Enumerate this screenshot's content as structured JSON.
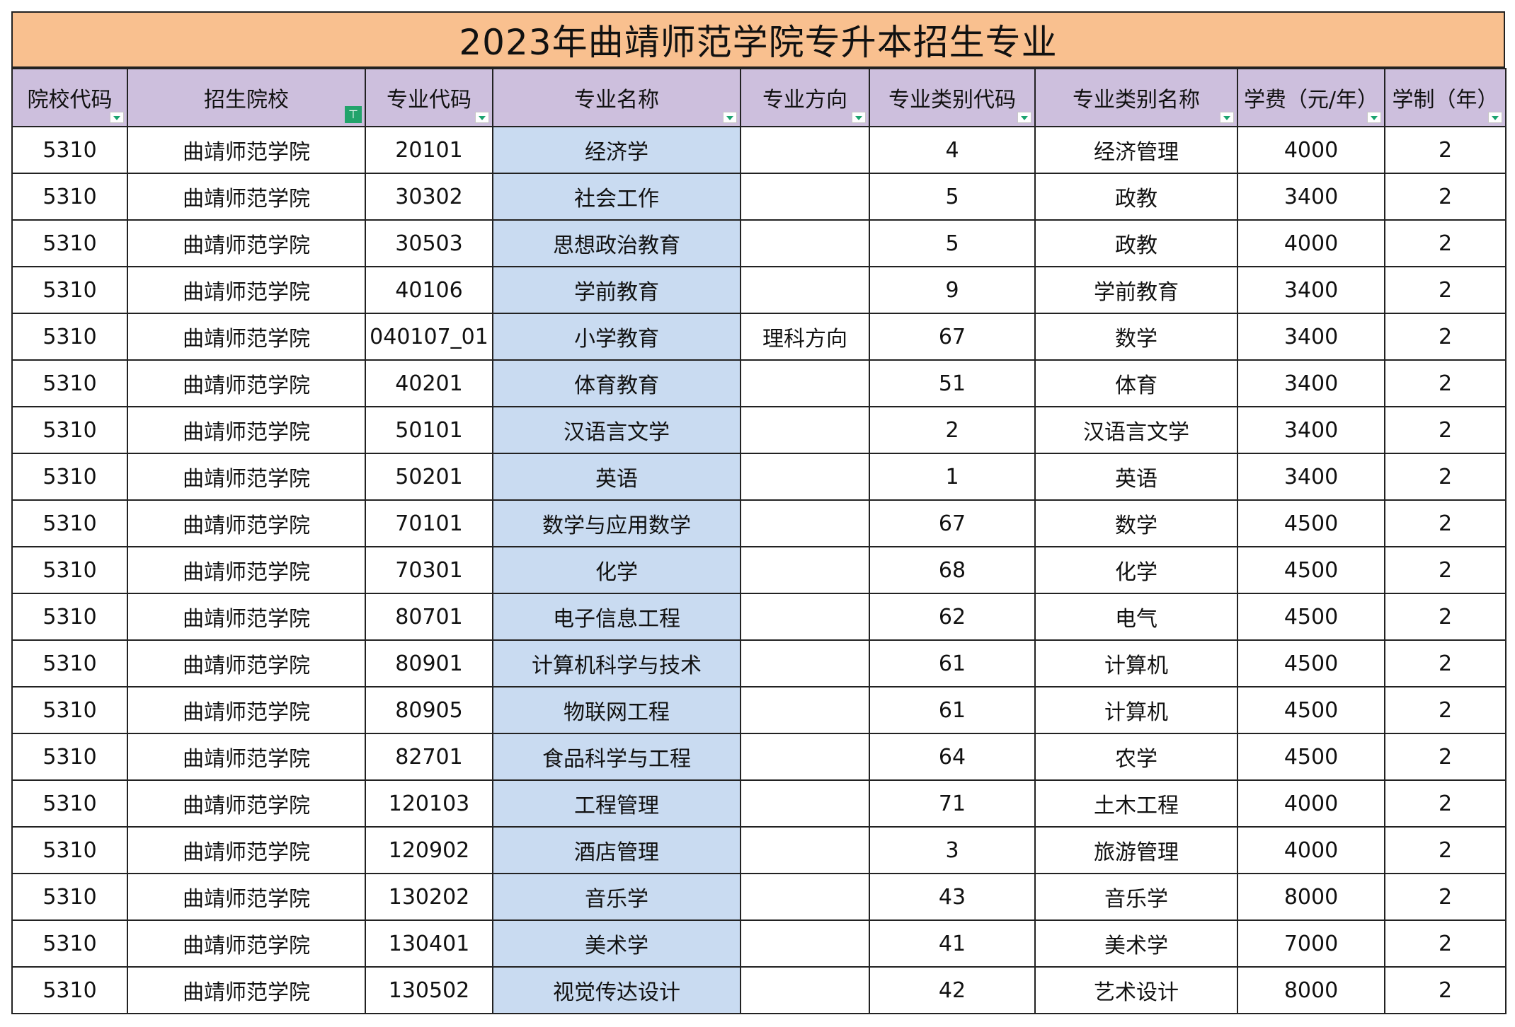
{
  "title": "2023年曲靖师范学院专升本招生专业",
  "filter_glyph": "⊤",
  "headers": [
    "院校代码",
    "招生院校",
    "专业代码",
    "专业名称",
    "专业方向",
    "专业类别代码",
    "专业类别名称",
    "学费（元/年）",
    "学制（年）"
  ],
  "rows": [
    [
      "5310",
      "曲靖师范学院",
      "20101",
      "经济学",
      "",
      "4",
      "经济管理",
      "4000",
      "2"
    ],
    [
      "5310",
      "曲靖师范学院",
      "30302",
      "社会工作",
      "",
      "5",
      "政教",
      "3400",
      "2"
    ],
    [
      "5310",
      "曲靖师范学院",
      "30503",
      "思想政治教育",
      "",
      "5",
      "政教",
      "4000",
      "2"
    ],
    [
      "5310",
      "曲靖师范学院",
      "40106",
      "学前教育",
      "",
      "9",
      "学前教育",
      "3400",
      "2"
    ],
    [
      "5310",
      "曲靖师范学院",
      "040107_01",
      "小学教育",
      "理科方向",
      "67",
      "数学",
      "3400",
      "2"
    ],
    [
      "5310",
      "曲靖师范学院",
      "40201",
      "体育教育",
      "",
      "51",
      "体育",
      "3400",
      "2"
    ],
    [
      "5310",
      "曲靖师范学院",
      "50101",
      "汉语言文学",
      "",
      "2",
      "汉语言文学",
      "3400",
      "2"
    ],
    [
      "5310",
      "曲靖师范学院",
      "50201",
      "英语",
      "",
      "1",
      "英语",
      "3400",
      "2"
    ],
    [
      "5310",
      "曲靖师范学院",
      "70101",
      "数学与应用数学",
      "",
      "67",
      "数学",
      "4500",
      "2"
    ],
    [
      "5310",
      "曲靖师范学院",
      "70301",
      "化学",
      "",
      "68",
      "化学",
      "4500",
      "2"
    ],
    [
      "5310",
      "曲靖师范学院",
      "80701",
      "电子信息工程",
      "",
      "62",
      "电气",
      "4500",
      "2"
    ],
    [
      "5310",
      "曲靖师范学院",
      "80901",
      "计算机科学与技术",
      "",
      "61",
      "计算机",
      "4500",
      "2"
    ],
    [
      "5310",
      "曲靖师范学院",
      "80905",
      "物联网工程",
      "",
      "61",
      "计算机",
      "4500",
      "2"
    ],
    [
      "5310",
      "曲靖师范学院",
      "82701",
      "食品科学与工程",
      "",
      "64",
      "农学",
      "4500",
      "2"
    ],
    [
      "5310",
      "曲靖师范学院",
      "120103",
      "工程管理",
      "",
      "71",
      "土木工程",
      "4000",
      "2"
    ],
    [
      "5310",
      "曲靖师范学院",
      "120902",
      "酒店管理",
      "",
      "3",
      "旅游管理",
      "4000",
      "2"
    ],
    [
      "5310",
      "曲靖师范学院",
      "130202",
      "音乐学",
      "",
      "43",
      "音乐学",
      "8000",
      "2"
    ],
    [
      "5310",
      "曲靖师范学院",
      "130401",
      "美术学",
      "",
      "41",
      "美术学",
      "7000",
      "2"
    ],
    [
      "5310",
      "曲靖师范学院",
      "130502",
      "视觉传达设计",
      "",
      "42",
      "艺术设计",
      "8000",
      "2"
    ]
  ],
  "colors": {
    "title_bg": "#f9c08f",
    "header_bg": "#cdbfdd",
    "major_column_bg": "#c9dbf1",
    "filter_accent": "#22a36b"
  }
}
